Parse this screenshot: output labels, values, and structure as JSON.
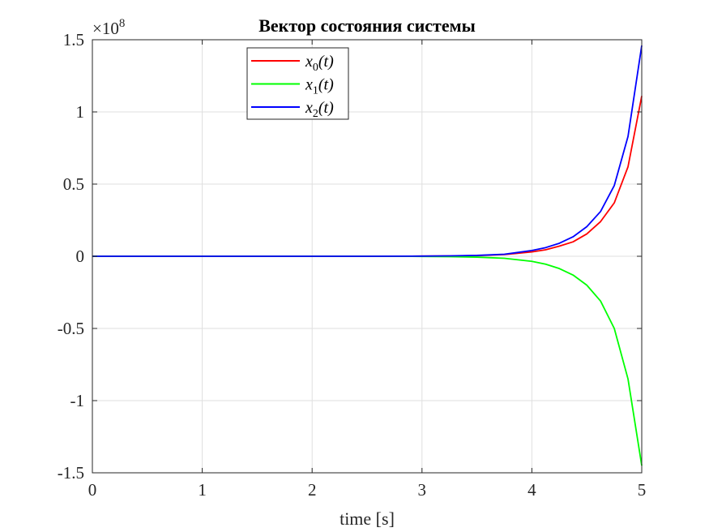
{
  "chart_data": {
    "type": "line",
    "title": "Вектор состояния системы",
    "xlabel": "time [s]",
    "ylabel": "",
    "xlim": [
      0,
      5
    ],
    "ylim": [
      -1.5,
      1.5
    ],
    "y_exponent_label": "×10",
    "y_exponent": "8",
    "x_ticks": [
      0,
      1,
      2,
      3,
      4,
      5
    ],
    "x_tick_labels": [
      "0",
      "1",
      "2",
      "3",
      "4",
      "5"
    ],
    "y_ticks": [
      -1.5,
      -1,
      -0.5,
      0,
      0.5,
      1,
      1.5
    ],
    "y_tick_labels": [
      "-1.5",
      "-1",
      "-0.5",
      "0",
      "0.5",
      "1",
      "1.5"
    ],
    "grid": true,
    "legend_position": "top-left-center",
    "x": [
      0,
      0.5,
      1,
      1.5,
      2,
      2.5,
      3,
      3.25,
      3.5,
      3.75,
      4,
      4.125,
      4.25,
      4.375,
      4.5,
      4.625,
      4.75,
      4.875,
      5
    ],
    "series": [
      {
        "name": "x_0(t)",
        "legend_main": "x",
        "legend_sub": "0",
        "legend_tail": "(t)",
        "color": "#ff0000",
        "values": [
          0,
          0,
          0,
          0,
          0,
          0.0001,
          0.001,
          0.002,
          0.005,
          0.012,
          0.03,
          0.045,
          0.07,
          0.1,
          0.155,
          0.24,
          0.37,
          0.62,
          1.11
        ]
      },
      {
        "name": "x_1(t)",
        "legend_main": "x",
        "legend_sub": "1",
        "legend_tail": "(t)",
        "color": "#00ff00",
        "values": [
          0,
          0,
          0,
          0,
          0,
          -0.0001,
          -0.001,
          -0.003,
          -0.006,
          -0.014,
          -0.035,
          -0.055,
          -0.085,
          -0.13,
          -0.2,
          -0.31,
          -0.5,
          -0.85,
          -1.45
        ]
      },
      {
        "name": "x_2(t)",
        "legend_main": "x",
        "legend_sub": "2",
        "legend_tail": "(t)",
        "color": "#0000ff",
        "values": [
          0,
          0,
          0,
          0,
          0,
          0.0001,
          0.001,
          0.003,
          0.006,
          0.014,
          0.04,
          0.06,
          0.09,
          0.135,
          0.205,
          0.31,
          0.49,
          0.83,
          1.46
        ]
      }
    ]
  }
}
